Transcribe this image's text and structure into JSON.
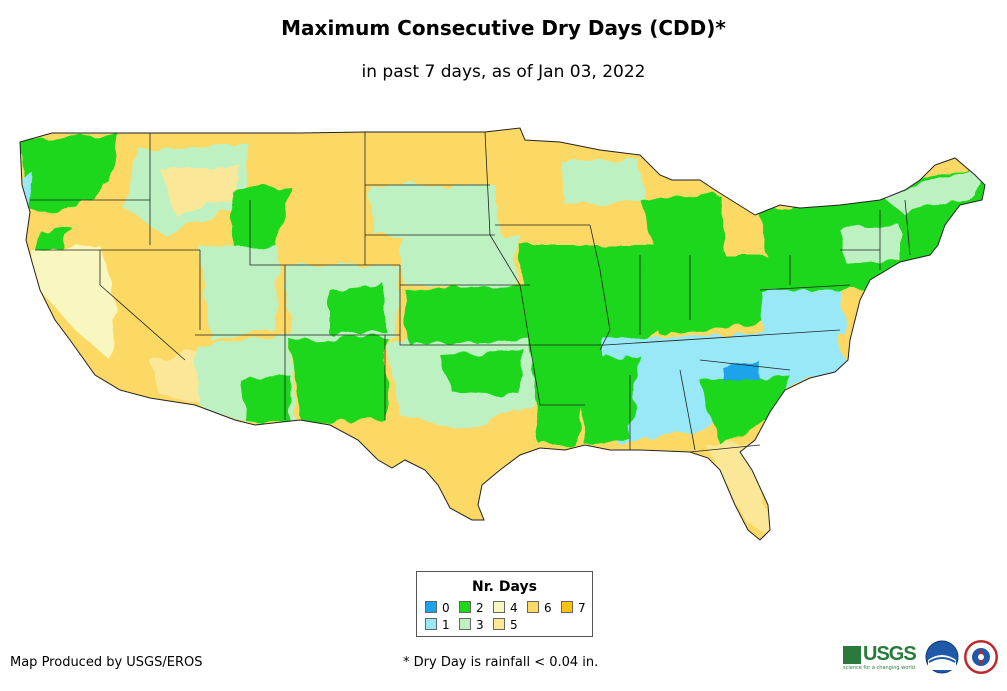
{
  "title": "Maximum Consecutive Dry Days (CDD)*",
  "subtitle": "in past 7 days, as of Jan 03, 2022",
  "legend": {
    "title": "Nr. Days",
    "items": [
      {
        "label": "0",
        "color": "#1aa3ea"
      },
      {
        "label": "1",
        "color": "#99e8f7"
      },
      {
        "label": "2",
        "color": "#1dd71a"
      },
      {
        "label": "3",
        "color": "#bdf1c2"
      },
      {
        "label": "4",
        "color": "#f8f7bf"
      },
      {
        "label": "5",
        "color": "#fae898"
      },
      {
        "label": "6",
        "color": "#fbd964"
      },
      {
        "label": "7",
        "color": "#fdc20f"
      }
    ]
  },
  "credit": "Map Produced by USGS/EROS",
  "footnote": "* Dry Day is rainfall < 0.04 in.",
  "logos": {
    "usgs": "USGS",
    "usgs_tagline": "science for a changing world",
    "noaa": "noaa",
    "nws": "National Weather Service"
  }
}
